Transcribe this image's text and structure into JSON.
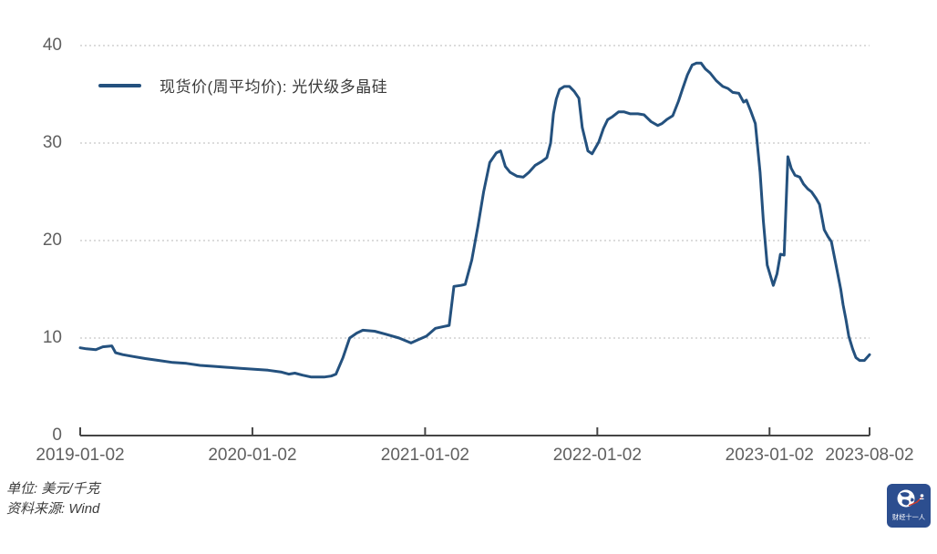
{
  "legend": {
    "series_label": "现货价(周平均价): 光伏级多晶硅"
  },
  "footer": {
    "unit_note": "单位: 美元/千克",
    "source_note": "资料来源: Wind"
  },
  "logo": {
    "brand_text": "财经十一人"
  },
  "colors": {
    "line": "#24517e",
    "grid": "#c8c8c8",
    "axis": "#454545",
    "tick_label": "#606060",
    "logo_bg": "#2c4e8f",
    "logo_accent": "#d03a2b"
  },
  "chart_data": {
    "type": "line",
    "title": "",
    "xlabel": "",
    "ylabel": "",
    "unit": "美元/千克",
    "source": "Wind",
    "grid": "horizontal-dotted",
    "legend_position": "top-left",
    "ylim": [
      0,
      40
    ],
    "y_ticks": [
      0,
      10,
      20,
      30,
      40
    ],
    "x_ticks": [
      "2019-01-02",
      "2020-01-02",
      "2021-01-02",
      "2022-01-02",
      "2023-01-02",
      "2023-08-02"
    ],
    "x_range": [
      "2019-01-02",
      "2023-08-02"
    ],
    "series": [
      {
        "name": "现货价(周平均价): 光伏级多晶硅",
        "dates": [
          "2019-01-02",
          "2019-01-15",
          "2019-02-04",
          "2019-02-19",
          "2019-03-10",
          "2019-03-18",
          "2019-04-02",
          "2019-04-25",
          "2019-05-20",
          "2019-06-18",
          "2019-07-17",
          "2019-08-15",
          "2019-09-13",
          "2019-10-11",
          "2019-11-09",
          "2019-12-08",
          "2020-01-06",
          "2020-02-04",
          "2020-03-04",
          "2020-03-19",
          "2020-04-01",
          "2020-04-17",
          "2020-05-06",
          "2020-06-02",
          "2020-06-17",
          "2020-06-27",
          "2020-07-12",
          "2020-07-26",
          "2020-08-10",
          "2020-08-23",
          "2020-09-17",
          "2020-10-10",
          "2020-11-08",
          "2020-12-03",
          "2020-12-17",
          "2021-01-05",
          "2021-01-24",
          "2021-02-12",
          "2021-02-22",
          "2021-03-04",
          "2021-03-19",
          "2021-03-28",
          "2021-04-11",
          "2021-04-24",
          "2021-05-06",
          "2021-05-19",
          "2021-06-02",
          "2021-06-11",
          "2021-06-21",
          "2021-07-01",
          "2021-07-16",
          "2021-07-29",
          "2021-08-10",
          "2021-08-23",
          "2021-09-06",
          "2021-09-17",
          "2021-09-25",
          "2021-10-01",
          "2021-10-07",
          "2021-10-14",
          "2021-10-24",
          "2021-11-04",
          "2021-11-14",
          "2021-11-24",
          "2021-12-01",
          "2021-12-13",
          "2021-12-22",
          "2022-01-05",
          "2022-01-15",
          "2022-01-24",
          "2022-02-03",
          "2022-02-16",
          "2022-02-28",
          "2022-03-13",
          "2022-03-29",
          "2022-04-11",
          "2022-04-26",
          "2022-05-10",
          "2022-05-19",
          "2022-05-29",
          "2022-06-11",
          "2022-06-23",
          "2022-07-02",
          "2022-07-12",
          "2022-07-22",
          "2022-07-31",
          "2022-08-10",
          "2022-08-19",
          "2022-08-29",
          "2022-09-11",
          "2022-09-25",
          "2022-10-06",
          "2022-10-16",
          "2022-10-29",
          "2022-11-08",
          "2022-11-14",
          "2022-11-23",
          "2022-12-03",
          "2022-12-13",
          "2022-12-20",
          "2022-12-28",
          "2023-01-10",
          "2023-01-18",
          "2023-01-25",
          "2023-02-02",
          "2023-02-10",
          "2023-02-17",
          "2023-02-25",
          "2023-03-07",
          "2023-03-15",
          "2023-03-24",
          "2023-04-01",
          "2023-04-11",
          "2023-04-18",
          "2023-04-28",
          "2023-05-06",
          "2023-05-13",
          "2023-05-23",
          "2023-06-02",
          "2023-06-07",
          "2023-06-13",
          "2023-06-19",
          "2023-06-27",
          "2023-07-04",
          "2023-07-12",
          "2023-07-22",
          "2023-08-02"
        ],
        "values": [
          9.0,
          8.9,
          8.8,
          9.1,
          9.2,
          8.5,
          8.3,
          8.1,
          7.9,
          7.7,
          7.5,
          7.4,
          7.2,
          7.1,
          7.0,
          6.9,
          6.8,
          6.7,
          6.5,
          6.3,
          6.4,
          6.2,
          6.0,
          6.0,
          6.1,
          6.3,
          8.0,
          10.0,
          10.5,
          10.8,
          10.7,
          10.4,
          10.0,
          9.5,
          9.8,
          10.2,
          11.0,
          11.2,
          11.3,
          15.3,
          15.4,
          15.5,
          18.0,
          21.5,
          25.0,
          28.0,
          29.0,
          29.2,
          27.6,
          27.0,
          26.6,
          26.5,
          27.0,
          27.7,
          28.1,
          28.5,
          30.0,
          33.0,
          34.5,
          35.5,
          35.8,
          35.8,
          35.3,
          34.6,
          31.6,
          29.2,
          28.9,
          30.1,
          31.5,
          32.4,
          32.7,
          33.2,
          33.2,
          33.0,
          33.0,
          32.9,
          32.2,
          31.8,
          32.0,
          32.4,
          32.8,
          34.3,
          35.6,
          37.0,
          38.0,
          38.2,
          38.2,
          37.6,
          37.2,
          36.4,
          35.8,
          35.6,
          35.2,
          35.1,
          34.2,
          34.4,
          33.3,
          32.0,
          27.0,
          22.0,
          17.5,
          15.4,
          16.6,
          18.6,
          18.5,
          28.6,
          27.4,
          26.7,
          26.5,
          25.8,
          25.3,
          25.0,
          24.3,
          23.7,
          21.1,
          20.4,
          19.9,
          17.5,
          15.0,
          13.4,
          11.9,
          10.2,
          8.9,
          8.0,
          7.7,
          7.7,
          8.3
        ]
      }
    ]
  }
}
